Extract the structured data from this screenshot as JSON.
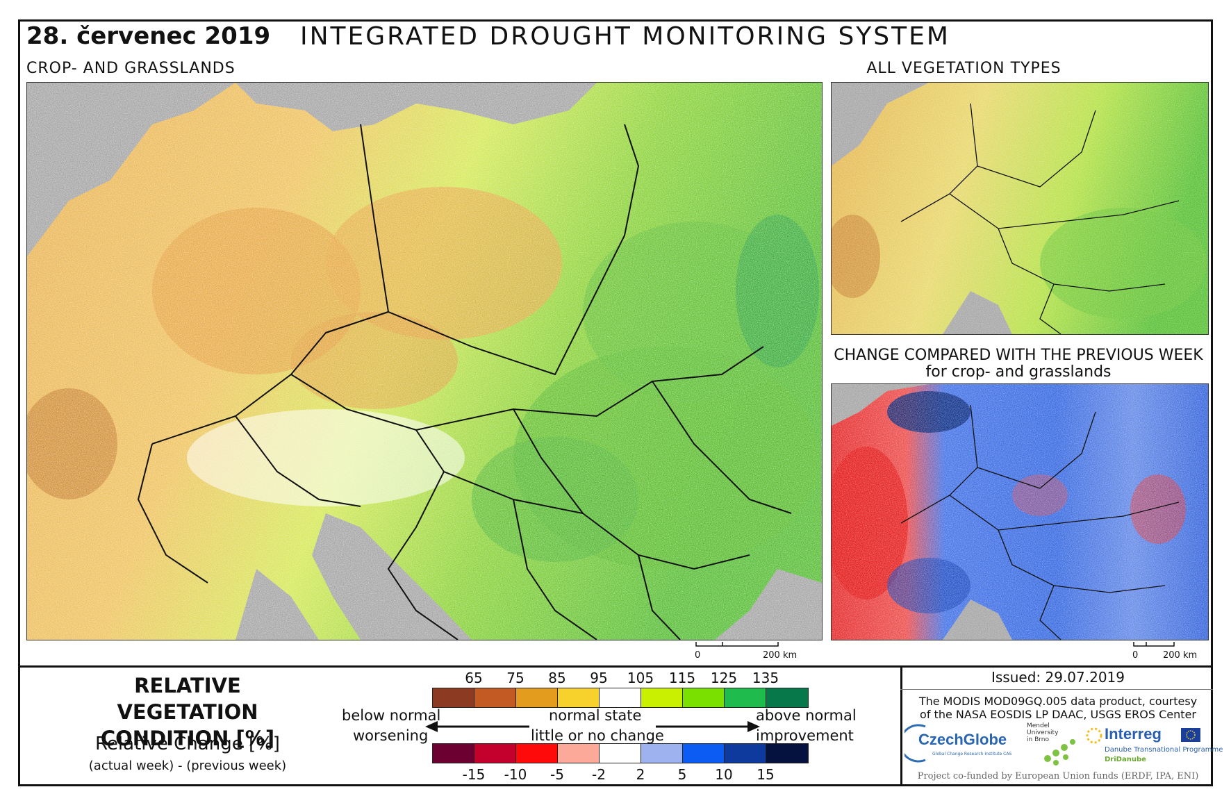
{
  "header": {
    "date": "28. červenec 2019",
    "title": "INTEGRATED DROUGHT MONITORING SYSTEM"
  },
  "panels": {
    "main_label": "CROP- AND GRASSLANDS",
    "allveg_label": "ALL VEGETATION TYPES",
    "change_label_line1": "CHANGE COMPARED WITH THE PREVIOUS WEEK",
    "change_label_line2": "for crop- and grasslands"
  },
  "scale": {
    "zero": "0",
    "distance": "200 km"
  },
  "legend": {
    "title_line1": "RELATIVE VEGETATION",
    "title_line2": "CONDITION [%]",
    "rel_change": "Relative Change [%]",
    "rel_change_sub": "(actual week) - (previous week)",
    "condition_ticks": [
      "65",
      "75",
      "85",
      "95",
      "105",
      "115",
      "125",
      "135"
    ],
    "condition_colors": [
      "#8c3b22",
      "#c45a23",
      "#e39c1e",
      "#f7d22c",
      "#ffffff",
      "#c9f000",
      "#79e000",
      "#1fbb4d",
      "#06784a"
    ],
    "change_ticks": [
      "-15",
      "-10",
      "-5",
      "-2",
      "2",
      "5",
      "10",
      "15"
    ],
    "change_colors": [
      "#6c0030",
      "#c4002d",
      "#ff0a0a",
      "#fca99a",
      "#ffffff",
      "#9eb2f0",
      "#0c5cf3",
      "#0d3a9c",
      "#05123f"
    ],
    "below_normal": "below normal",
    "worsening": "worsening",
    "normal_state": "normal state",
    "little_change": "little or no change",
    "above_normal": "above normal",
    "improvement": "improvement"
  },
  "footer": {
    "issued": "Issued: 29.07.2019",
    "courtesy_line1": "The MODIS MOD09GQ.005 data product, courtesy",
    "courtesy_line2": "of the NASA EOSDIS LP DAAC, USGS EROS Center",
    "funded": "Project co-funded by European Union funds (ERDF, IPA, ENI)",
    "logo_czechglobe": "CzechGlobe",
    "logo_czechglobe_sub": "Global Change Research Institute CAS",
    "logo_mendel_1": "Mendel",
    "logo_mendel_2": "University",
    "logo_mendel_3": "in Brno",
    "logo_interreg": "Interreg",
    "logo_interreg_sub": "Danube Transnational Programme",
    "logo_dridanube": "DriDanube"
  },
  "colors": {
    "land_gray": "#a7a7a7",
    "border": "#111111"
  }
}
